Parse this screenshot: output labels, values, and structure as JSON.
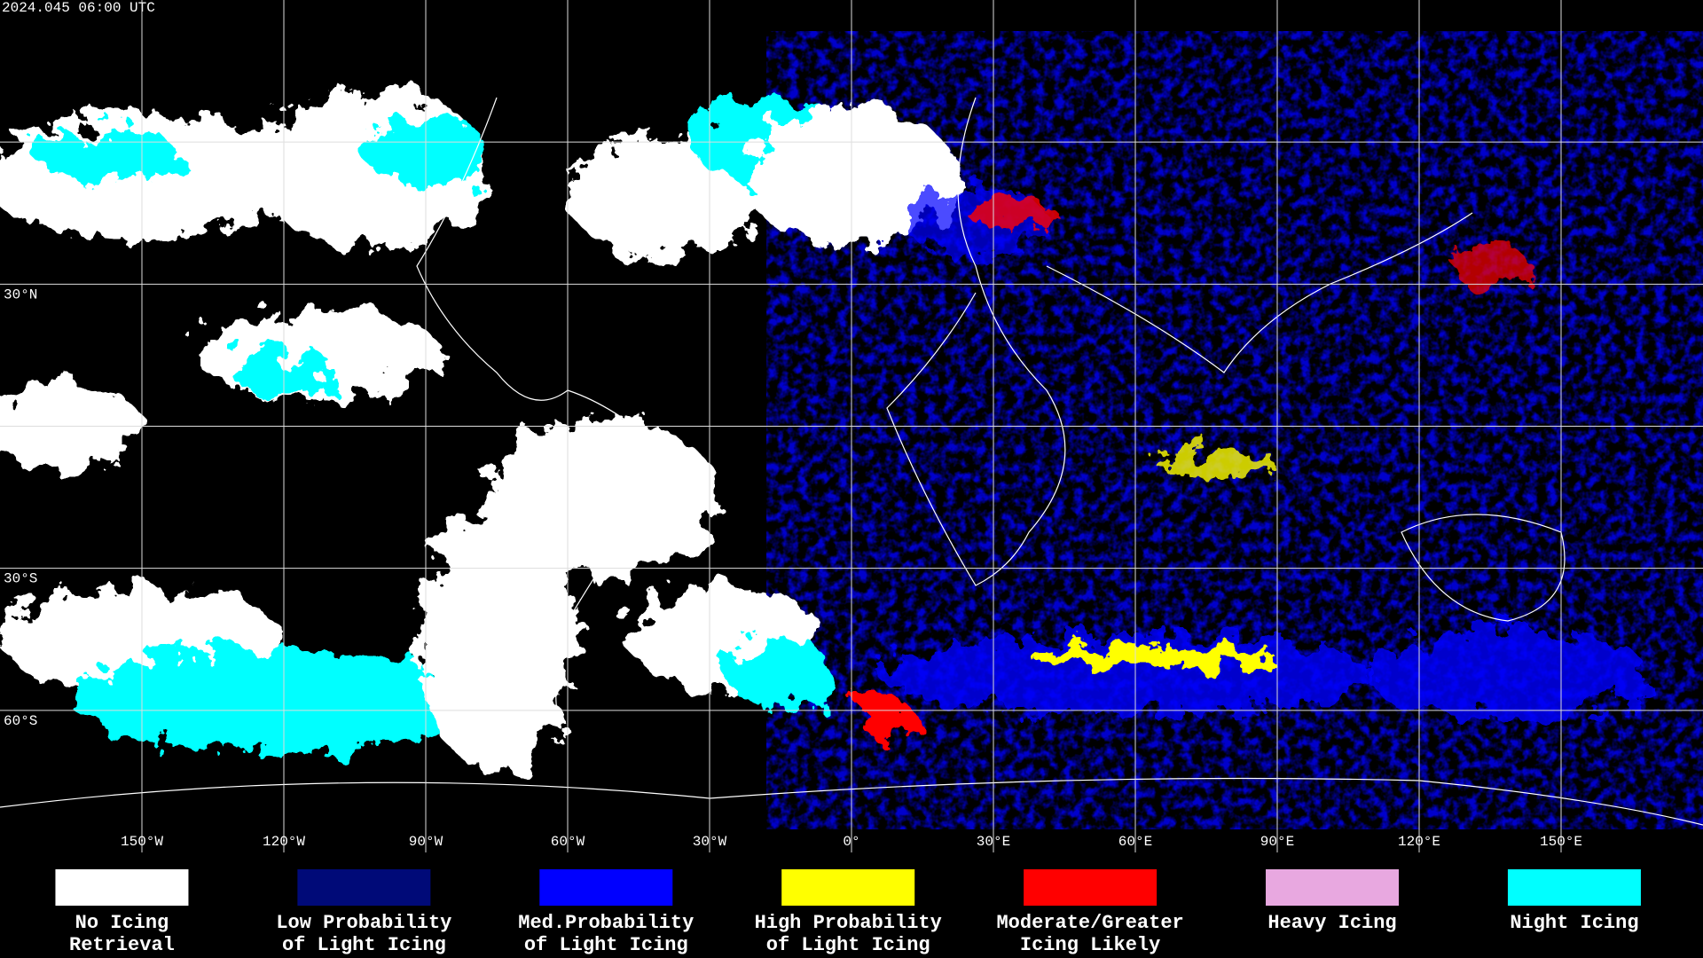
{
  "header": {
    "timestamp": "2024.045 06:00 UTC"
  },
  "map": {
    "lon_ticks": [
      {
        "value": -150,
        "label": "150°W"
      },
      {
        "value": -120,
        "label": "120°W"
      },
      {
        "value": -90,
        "label": "90°W"
      },
      {
        "value": -60,
        "label": "60°W"
      },
      {
        "value": -30,
        "label": "30°W"
      },
      {
        "value": 0,
        "label": "0°"
      },
      {
        "value": 30,
        "label": "30°E"
      },
      {
        "value": 60,
        "label": "60°E"
      },
      {
        "value": 90,
        "label": "90°E"
      },
      {
        "value": 120,
        "label": "120°E"
      },
      {
        "value": 150,
        "label": "150°E"
      }
    ],
    "lat_ticks": [
      {
        "value": 30,
        "label": "30°N"
      },
      {
        "value": -30,
        "label": "30°S"
      },
      {
        "value": -60,
        "label": "60°S"
      }
    ]
  },
  "legend": [
    {
      "lines": [
        "No Icing",
        "Retrieval"
      ],
      "color": "#ffffff"
    },
    {
      "lines": [
        "Low Probability",
        "of Light Icing"
      ],
      "color": "#000a78"
    },
    {
      "lines": [
        "Med.Probability",
        "of Light Icing"
      ],
      "color": "#0000ff"
    },
    {
      "lines": [
        "High Probability",
        "of Light Icing"
      ],
      "color": "#ffff00"
    },
    {
      "lines": [
        "Moderate/Greater",
        "Icing Likely"
      ],
      "color": "#ff0000"
    },
    {
      "lines": [
        "Heavy Icing"
      ],
      "color": "#e8a8e0"
    },
    {
      "lines": [
        "Night Icing"
      ],
      "color": "#00ffff"
    }
  ]
}
